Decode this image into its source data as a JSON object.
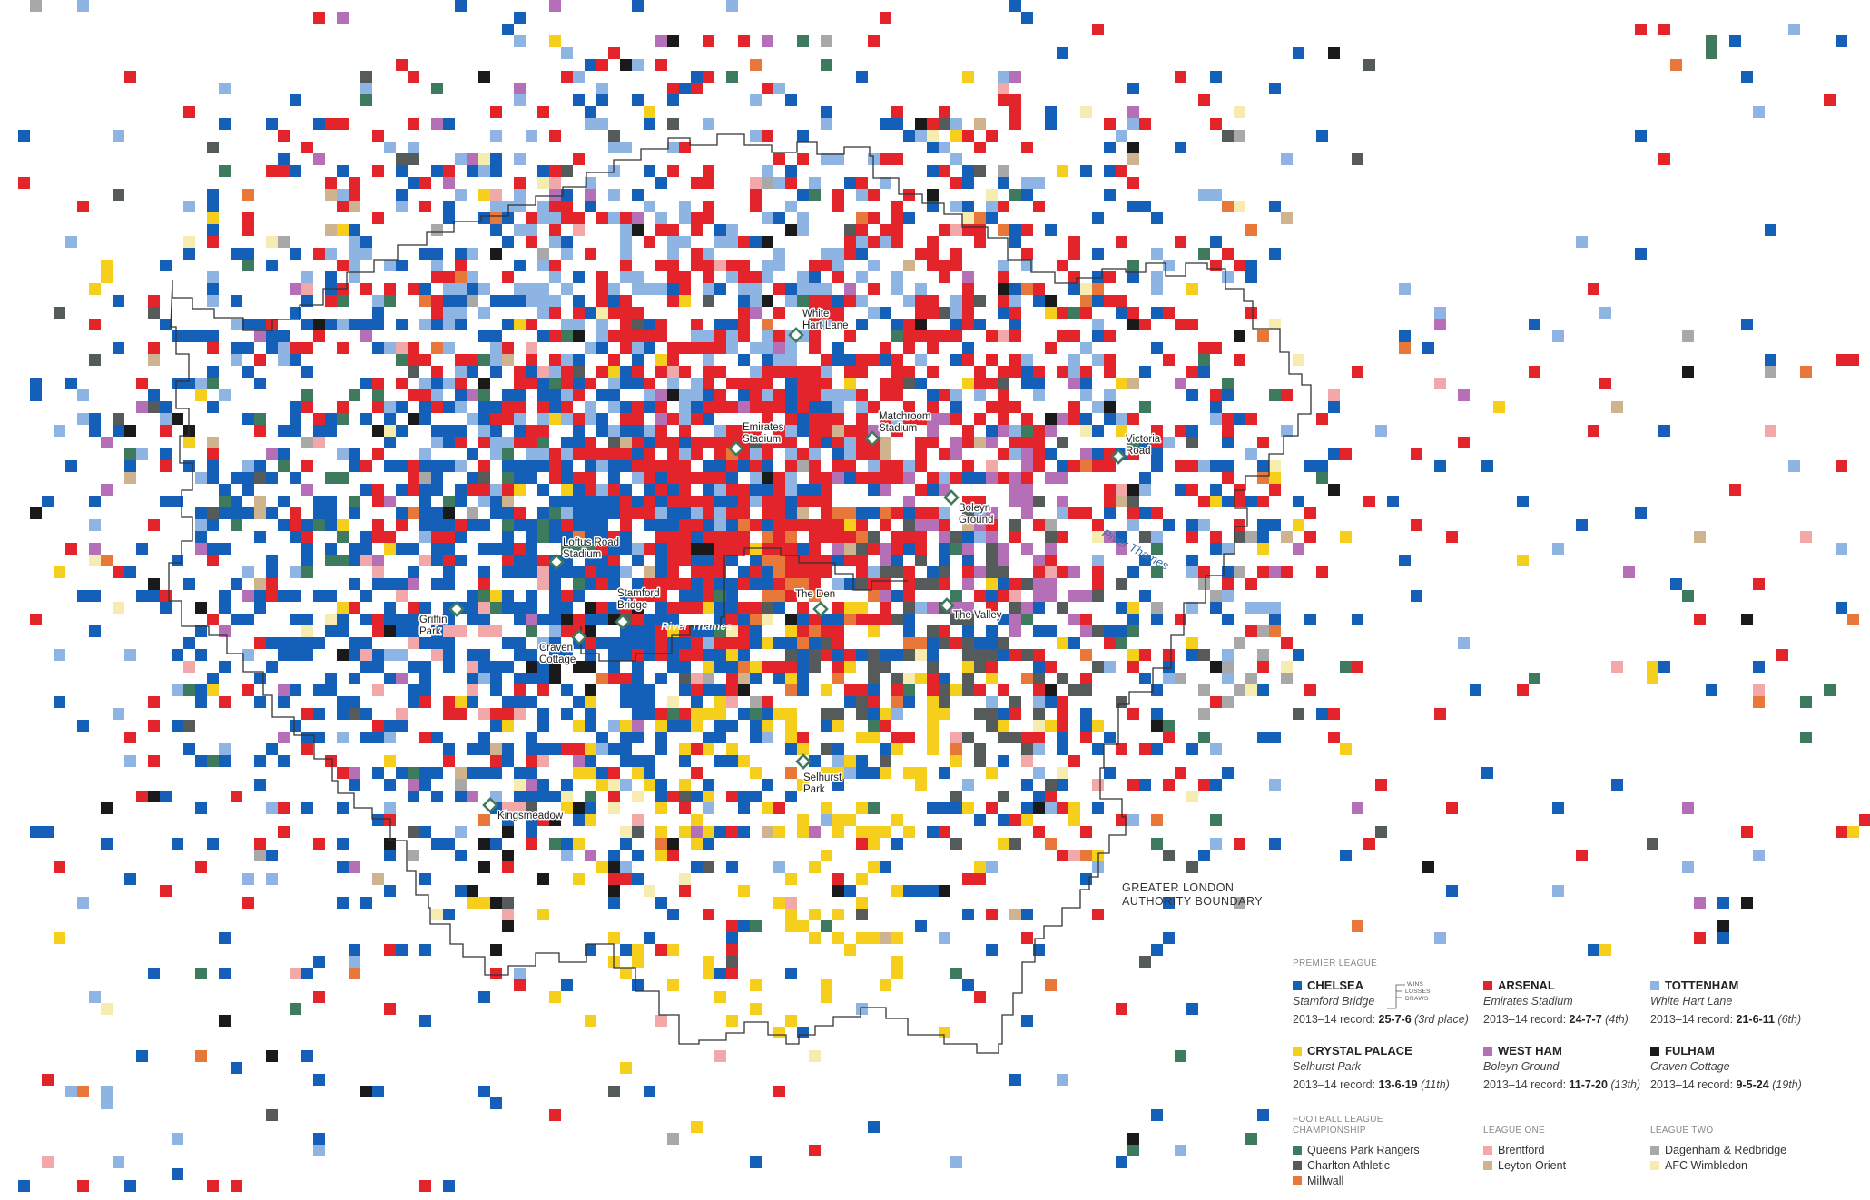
{
  "colors": {
    "chelsea": "#1460b8",
    "arsenal": "#e3242b",
    "tottenham": "#8db4e2",
    "crystal_palace": "#f5cf1b",
    "west_ham": "#b56fb7",
    "fulham": "#1a1a1a",
    "qpr": "#3e7a5e",
    "charlton": "#555a5a",
    "millwall": "#e8773a",
    "brentford": "#f2a8a8",
    "leyton_orient": "#cfb28e",
    "dagenham": "#a8a8a8",
    "wimbledon": "#f7ecb0"
  },
  "map_labels": {
    "white_hart_lane": [
      "White",
      "Hart Lane"
    ],
    "emirates": [
      "Emirates",
      "Stadium"
    ],
    "matchroom": [
      "Matchroom",
      "Stadium"
    ],
    "victoria_road": [
      "Victoria",
      "Road"
    ],
    "boleyn": [
      "Boleyn",
      "Ground"
    ],
    "loftus_road": [
      "Loftus Road",
      "Stadium"
    ],
    "stamford_bridge": [
      "Stamford",
      "Bridge"
    ],
    "the_den": [
      "The Den"
    ],
    "the_valley": [
      "The Valley"
    ],
    "griffin_park": [
      "Griffin",
      "Park"
    ],
    "craven_cottage": [
      "Craven",
      "Cottage"
    ],
    "selhurst_park": [
      "Selhurst",
      "Park"
    ],
    "kingsmeadow": [
      "Kingsmeadow"
    ],
    "river_thames_east": "River Thames",
    "river_thames_center": "River Thames",
    "boundary": [
      "GREATER LONDON",
      "AUTHORITY BOUNDARY"
    ]
  },
  "legend": {
    "premier_title": "PREMIER LEAGUE",
    "wld": [
      "WINS",
      "LOSSES",
      "DRAWS"
    ],
    "clubs": [
      {
        "key": "chelsea",
        "name": "CHELSEA",
        "ground": "Stamford Bridge",
        "record_prefix": "2013–14 record: ",
        "record": "25-7-6",
        "place": "(3rd place)"
      },
      {
        "key": "arsenal",
        "name": "ARSENAL",
        "ground": "Emirates Stadium",
        "record_prefix": "2013–14 record: ",
        "record": "24-7-7",
        "place": "(4th)"
      },
      {
        "key": "tottenham",
        "name": "TOTTENHAM",
        "ground": "White Hart Lane",
        "record_prefix": "2013–14 record: ",
        "record": "21-6-11",
        "place": "(6th)"
      },
      {
        "key": "crystal_palace",
        "name": "CRYSTAL PALACE",
        "ground": "Selhurst Park",
        "record_prefix": "2013–14 record: ",
        "record": "13-6-19",
        "place": "(11th)"
      },
      {
        "key": "west_ham",
        "name": "WEST HAM",
        "ground": "Boleyn Ground",
        "record_prefix": "2013–14 record: ",
        "record": "11-7-20",
        "place": "(13th)"
      },
      {
        "key": "fulham",
        "name": "FULHAM",
        "ground": "Craven Cottage",
        "record_prefix": "2013–14 record: ",
        "record": "9-5-24",
        "place": "(19th)"
      }
    ],
    "championship_title": [
      "FOOTBALL LEAGUE",
      "CHAMPIONSHIP"
    ],
    "championship": [
      {
        "key": "qpr",
        "name": "Queens Park Rangers"
      },
      {
        "key": "charlton",
        "name": "Charlton Athletic"
      },
      {
        "key": "millwall",
        "name": "Millwall"
      }
    ],
    "league_one_title": "LEAGUE ONE",
    "league_one": [
      {
        "key": "brentford",
        "name": "Brentford"
      },
      {
        "key": "leyton_orient",
        "name": "Leyton Orient"
      }
    ],
    "league_two_title": "LEAGUE TWO",
    "league_two": [
      {
        "key": "dagenham",
        "name": "Dagenham & Redbridge"
      },
      {
        "key": "wimbledon",
        "name": "AFC Wimbledon"
      }
    ]
  }
}
